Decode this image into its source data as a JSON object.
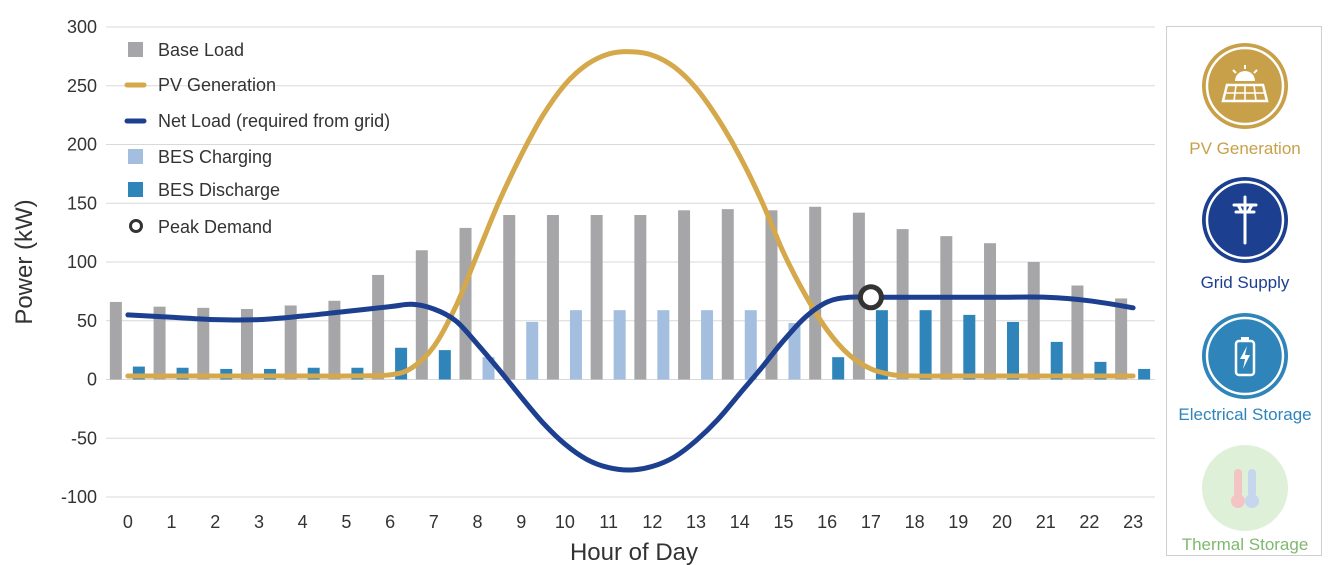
{
  "chart_data": {
    "type": "bar",
    "xlabel": "Hour of Day",
    "ylabel": "Power (kW)",
    "ylim": [
      -100,
      300
    ],
    "yticks": [
      -100,
      -50,
      0,
      50,
      100,
      150,
      200,
      250,
      300
    ],
    "categories": [
      "0",
      "1",
      "2",
      "3",
      "4",
      "5",
      "6",
      "7",
      "8",
      "9",
      "10",
      "11",
      "12",
      "13",
      "14",
      "15",
      "16",
      "17",
      "18",
      "19",
      "20",
      "21",
      "22",
      "23"
    ],
    "grid": true,
    "legend_position": "top-left",
    "series": [
      {
        "name": "Base Load",
        "kind": "bar",
        "color": "#a6a6a8",
        "values": [
          66,
          62,
          61,
          60,
          63,
          67,
          89,
          110,
          129,
          140,
          140,
          140,
          140,
          144,
          145,
          144,
          147,
          142,
          128,
          122,
          116,
          100,
          80,
          69
        ]
      },
      {
        "name": "BES Charging",
        "kind": "bar",
        "color": "#a4bedf",
        "values": [
          0,
          0,
          0,
          0,
          0,
          0,
          0,
          0,
          19,
          49,
          59,
          59,
          59,
          59,
          59,
          48,
          0,
          0,
          0,
          0,
          0,
          0,
          0,
          0
        ]
      },
      {
        "name": "BES Discharge",
        "kind": "bar",
        "color": "#2f84ba",
        "values": [
          11,
          10,
          9,
          9,
          10,
          10,
          27,
          25,
          0,
          0,
          0,
          0,
          0,
          0,
          0,
          0,
          19,
          59,
          59,
          55,
          49,
          32,
          15,
          9
        ]
      },
      {
        "name": "PV Generation",
        "kind": "line",
        "color": "#d4a84b",
        "x": [
          0,
          1,
          2,
          3,
          4,
          5,
          6,
          6.5,
          7,
          7.5,
          8,
          8.5,
          9,
          9.5,
          10,
          10.5,
          11,
          11.5,
          12,
          12.5,
          13,
          13.5,
          14,
          14.5,
          15,
          15.5,
          16,
          16.5,
          17,
          17.5,
          18,
          19,
          20,
          21,
          22,
          23
        ],
        "values": [
          3,
          3,
          3,
          3,
          3,
          3,
          4,
          10,
          28,
          62,
          107,
          152,
          191,
          225,
          251,
          268,
          277,
          279,
          276,
          266,
          248,
          222,
          190,
          152,
          108,
          72,
          42,
          21,
          9,
          4,
          3,
          3,
          3,
          3,
          3,
          3
        ]
      },
      {
        "name": "Net Load (required from grid)",
        "kind": "line",
        "color": "#1c3f8f",
        "x": [
          0,
          1,
          2,
          3,
          4,
          5,
          6,
          6.5,
          7,
          7.5,
          8,
          8.5,
          9,
          9.5,
          10,
          10.5,
          11,
          11.5,
          12,
          12.5,
          13,
          13.5,
          14,
          14.5,
          15,
          15.5,
          16,
          16.5,
          17,
          18,
          19,
          20,
          21,
          22,
          23
        ],
        "values": [
          55,
          53,
          51,
          51,
          54,
          58,
          62,
          64,
          60,
          50,
          30,
          8,
          -15,
          -37,
          -55,
          -68,
          -75,
          -77,
          -74,
          -66,
          -52,
          -34,
          -12,
          10,
          33,
          53,
          66,
          70,
          70,
          70,
          70,
          70,
          70,
          67,
          61
        ]
      }
    ],
    "peak_demand": {
      "name": "Peak Demand",
      "x": 17,
      "value": 70
    }
  },
  "legend": {
    "base_load": "Base Load",
    "pv_generation": "PV Generation",
    "net_load": "Net Load (required from grid)",
    "bes_charging": "BES Charging",
    "bes_discharge": "BES Discharge",
    "peak_demand": "Peak Demand"
  },
  "panel": {
    "items": [
      {
        "label": "PV Generation",
        "icon": "solar-panel-icon",
        "color": "#c9a04a"
      },
      {
        "label": "Grid Supply",
        "icon": "power-pole-icon",
        "color": "#1c3f8f"
      },
      {
        "label": "Electrical Storage",
        "icon": "battery-icon",
        "color": "#2f84ba"
      },
      {
        "label": "Thermal Storage",
        "icon": "thermometer-icon",
        "color": "#7fb870"
      }
    ]
  }
}
